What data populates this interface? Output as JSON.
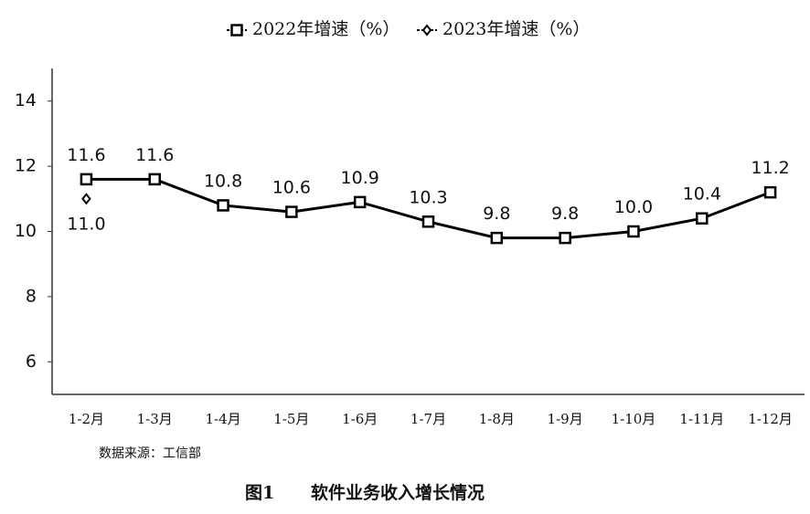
{
  "chart_data": {
    "type": "line",
    "categories": [
      "1-2月",
      "1-3月",
      "1-4月",
      "1-5月",
      "1-6月",
      "1-7月",
      "1-8月",
      "1-9月",
      "1-10月",
      "1-11月",
      "1-12月"
    ],
    "series": [
      {
        "name": "2022年增速（%）",
        "color": "#000000",
        "marker": "square",
        "values": [
          11.6,
          11.6,
          10.8,
          10.6,
          10.9,
          10.3,
          9.8,
          9.8,
          10.0,
          10.4,
          11.2
        ],
        "value_labels": [
          "11.6",
          "11.6",
          "10.8",
          "10.6",
          "10.9",
          "10.3",
          "9.8",
          "9.8",
          "10.0",
          "10.4",
          "11.2"
        ]
      },
      {
        "name": "2023年增速（%）",
        "color": "#000000",
        "marker": "diamond",
        "values": [
          11.0,
          null,
          null,
          null,
          null,
          null,
          null,
          null,
          null,
          null,
          null
        ],
        "value_labels": [
          "11.0",
          null,
          null,
          null,
          null,
          null,
          null,
          null,
          null,
          null,
          null
        ]
      }
    ],
    "ylim": [
      5,
      15
    ],
    "yticks": [
      6,
      8,
      10,
      12,
      14
    ],
    "grid": false,
    "source": "数据来源：工信部",
    "figure_label": "图1",
    "caption": "软件业务收入增长情况"
  }
}
